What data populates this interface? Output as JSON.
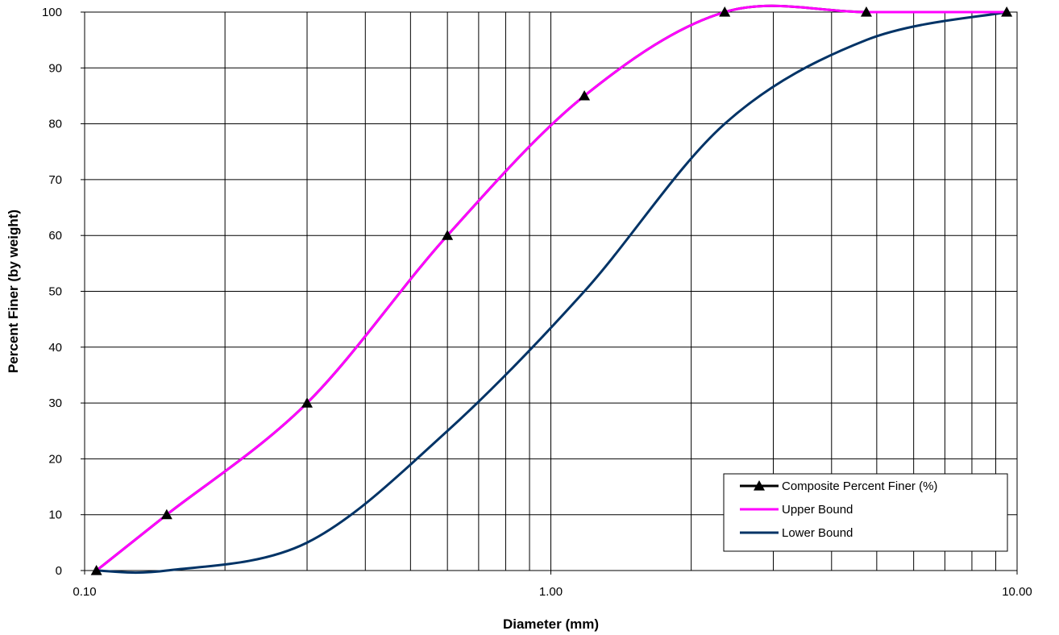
{
  "chart_data": {
    "type": "line",
    "title": "",
    "xlabel": "Diameter (mm)",
    "ylabel": "Percent Finer (by weight)",
    "x_scale": "log",
    "xlim": [
      0.1,
      10
    ],
    "ylim": [
      0,
      100
    ],
    "x_tick_labels": [
      "0.10",
      "1.00",
      "10.00"
    ],
    "y_tick_labels": [
      "0",
      "10",
      "20",
      "30",
      "40",
      "50",
      "60",
      "70",
      "80",
      "90",
      "100"
    ],
    "grid": true,
    "legend_position": "bottom-right",
    "series": [
      {
        "name": "Composite Percent Finer (%)",
        "color": "#000000",
        "marker": "triangle",
        "x": [
          0.106,
          0.15,
          0.3,
          0.6,
          1.18,
          2.36,
          4.75,
          9.5
        ],
        "y": [
          0,
          10,
          30,
          60,
          85,
          100,
          100,
          100
        ]
      },
      {
        "name": "Upper Bound",
        "color": "#ff00ff",
        "marker": "none",
        "x": [
          0.106,
          0.15,
          0.3,
          0.6,
          1.18,
          2.36,
          4.75,
          9.5
        ],
        "y": [
          0,
          10,
          30,
          60,
          85,
          100,
          100,
          100
        ]
      },
      {
        "name": "Lower Bound",
        "color": "#003366",
        "marker": "none",
        "x": [
          0.106,
          0.15,
          0.3,
          0.6,
          1.18,
          2.36,
          4.75,
          9.5
        ],
        "y": [
          0,
          0,
          5,
          25,
          50,
          80,
          95,
          100
        ]
      }
    ]
  }
}
